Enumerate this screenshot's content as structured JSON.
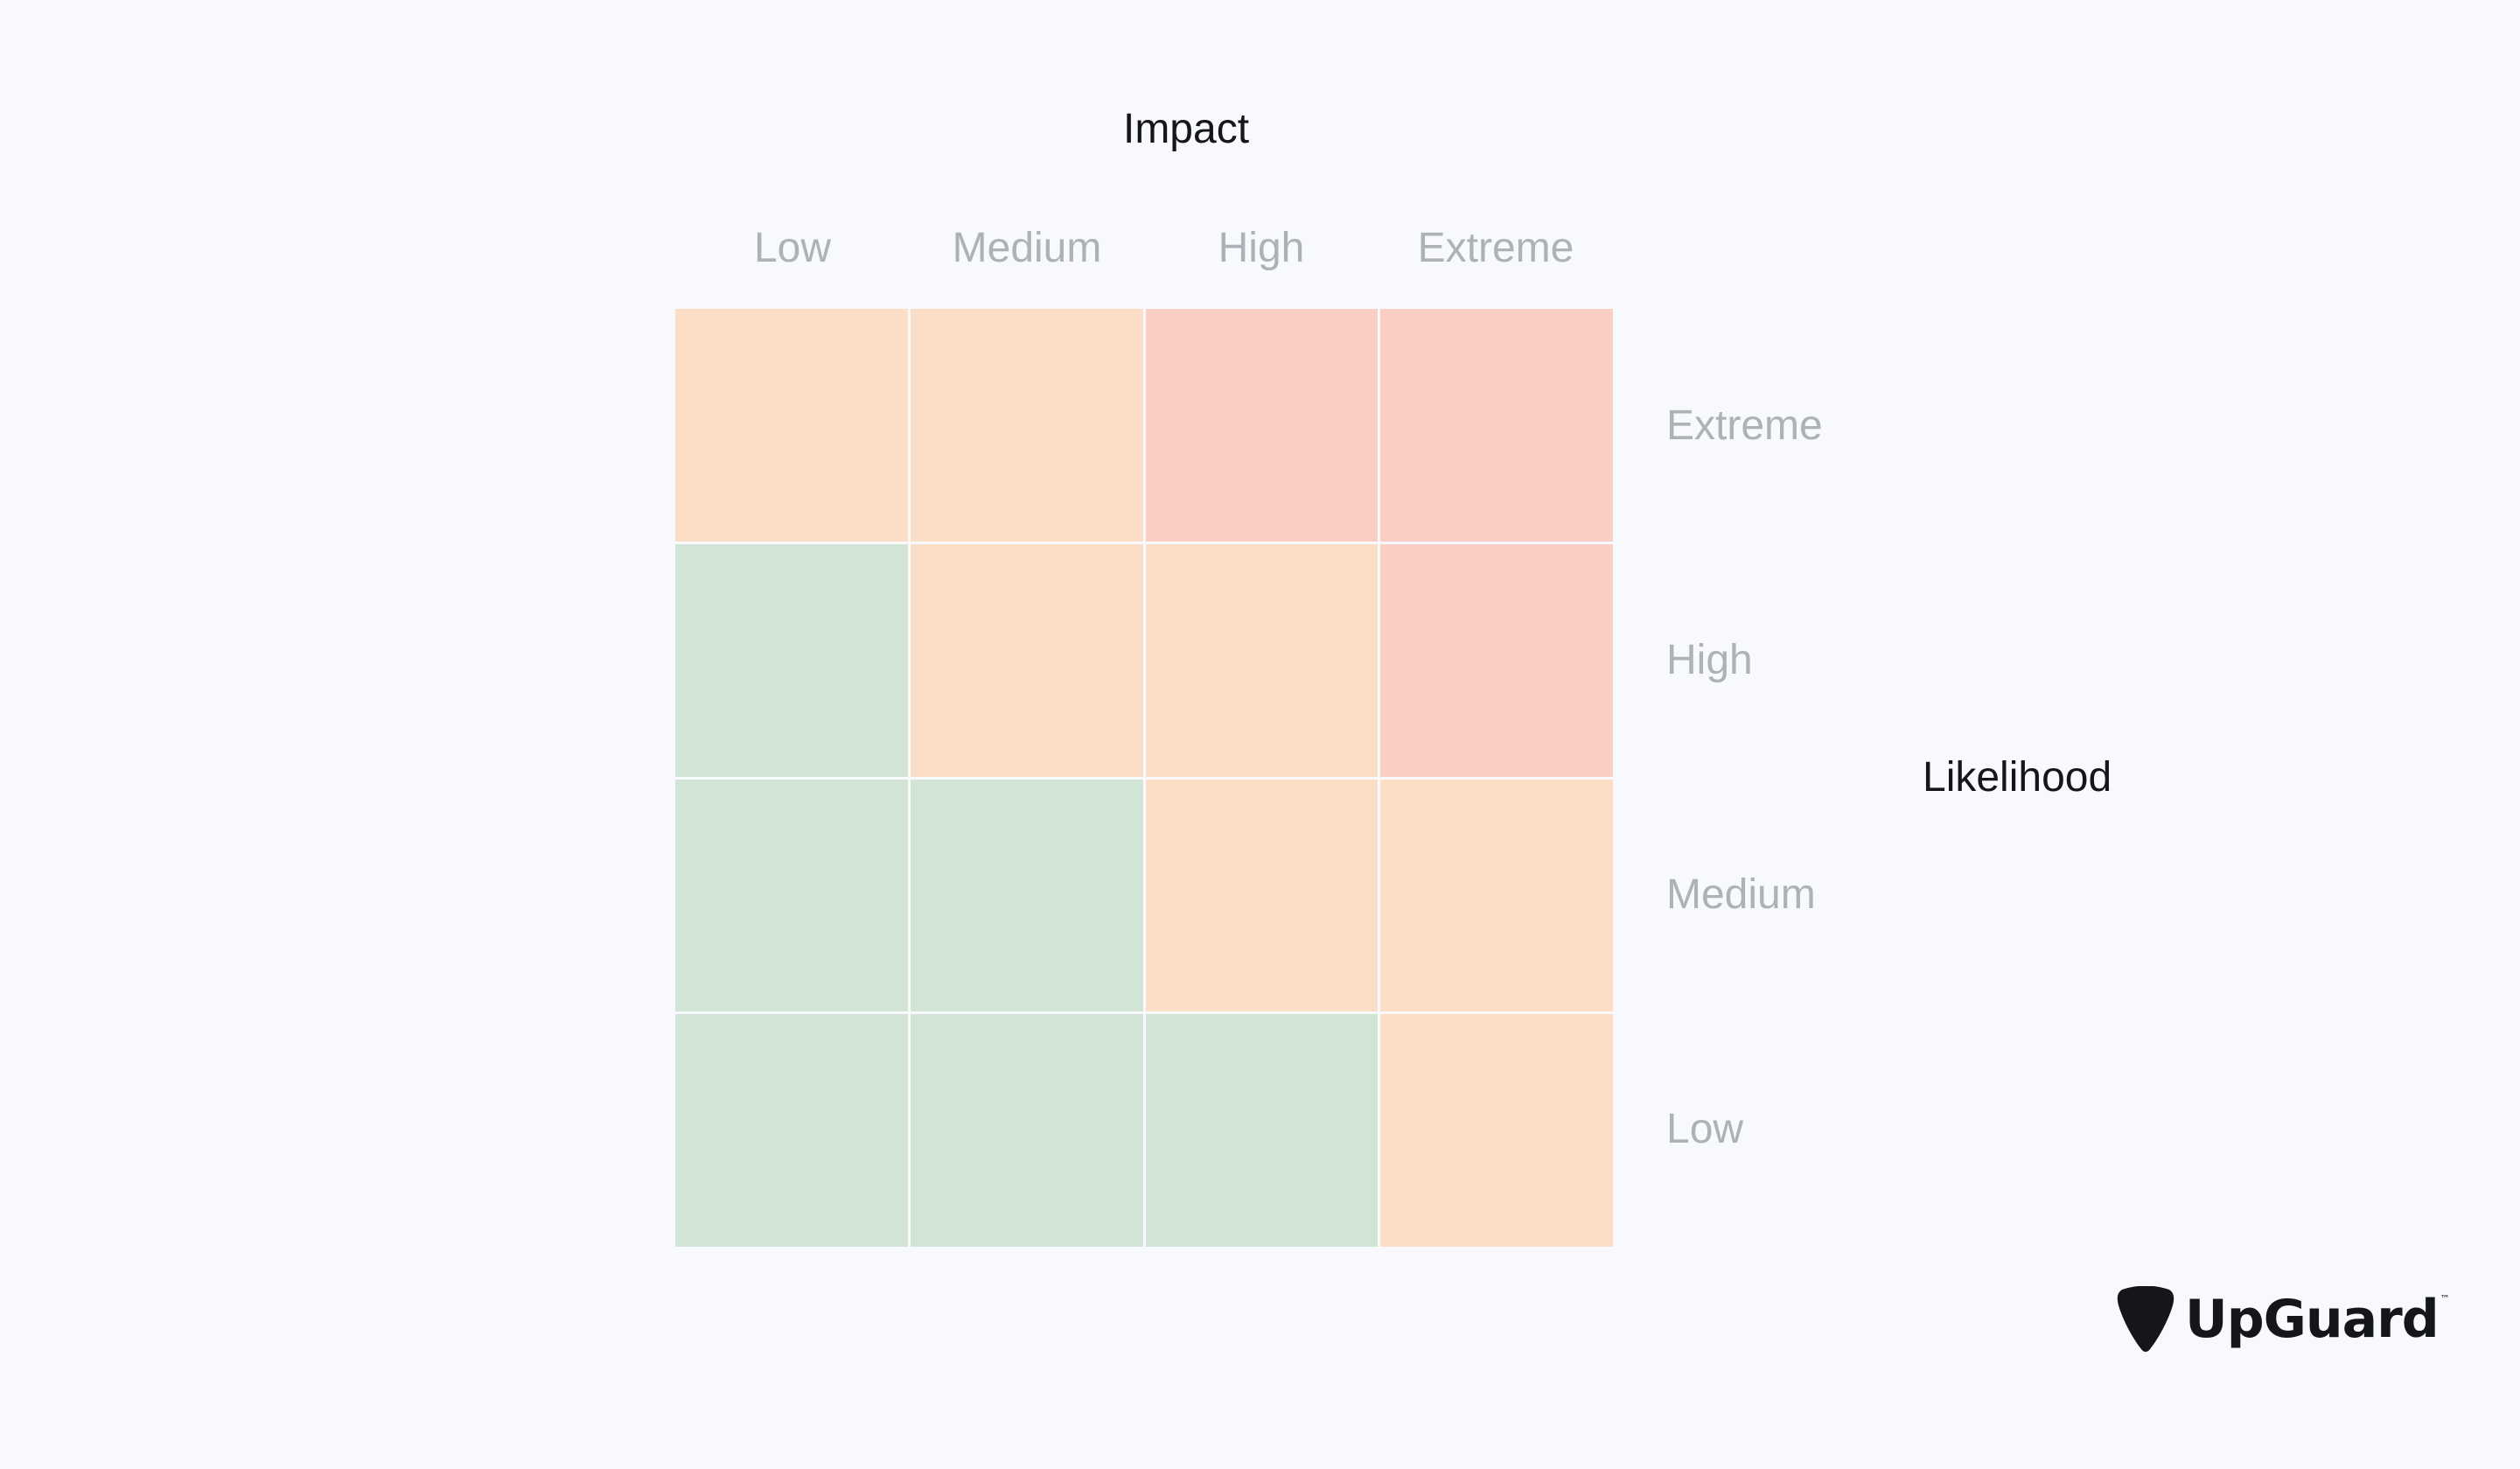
{
  "impact": {
    "title": "Impact",
    "levels": [
      "Low",
      "Medium",
      "High",
      "Extreme"
    ]
  },
  "likelihood": {
    "title": "Likelihood",
    "levels": [
      "Extreme",
      "High",
      "Medium",
      "Low"
    ]
  },
  "colors": {
    "low_risk": "#d2e4d6",
    "medium_risk": "#fcdec6",
    "high_risk": "#fbcec4",
    "background": "#f7f9fc",
    "axis_title": "#14161c",
    "level_label": "#aeb1b8"
  },
  "matrix": [
    [
      "medium_risk",
      "medium_risk",
      "high_risk",
      "high_risk"
    ],
    [
      "low_risk",
      "medium_risk",
      "medium_risk",
      "high_risk"
    ],
    [
      "low_risk",
      "low_risk",
      "medium_risk",
      "medium_risk"
    ],
    [
      "low_risk",
      "low_risk",
      "low_risk",
      "medium_risk"
    ]
  ],
  "logo": {
    "text": "UpGuard",
    "trademark": "™",
    "icon": "guitar-pick-icon"
  }
}
